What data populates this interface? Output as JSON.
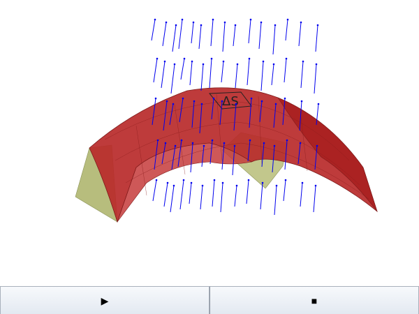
{
  "scene": {
    "surface_color_top": "#b22222",
    "surface_color_under": "#b7bd7d",
    "vector_color": "#0000ee",
    "surface_label": "ΔS"
  },
  "controls": {
    "play": {
      "icon": "play-icon",
      "glyph": "▶"
    },
    "stop": {
      "icon": "stop-icon",
      "glyph": "■"
    }
  }
}
